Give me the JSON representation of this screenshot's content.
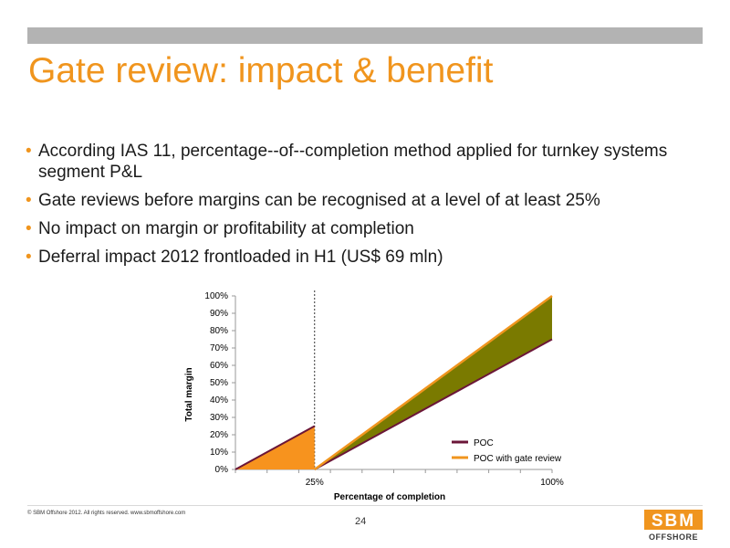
{
  "slide": {
    "title": "Gate review: impact & benefit",
    "bullets": [
      "According IAS 11, percentage--of--completion method applied for turnkey systems segment P&L",
      "Gate reviews before margins can be recognised at a level of at least 25%",
      "No impact on margin or profitability at completion",
      "Deferral impact 2012 frontloaded in H1 (US$ 69 mln)"
    ],
    "footer": "© SBM Offshore 2012. All rights reserved. www.sbmoffshore.com",
    "page_number": "24",
    "logo_text": "SBM",
    "logo_subtext": "OFFSHORE"
  },
  "colors": {
    "accent": "#f0951e",
    "poc": "#6b1638",
    "gate_fill_before": "#f7931e",
    "gap_fill": "#7a7a00"
  },
  "chart_data": {
    "type": "line",
    "xlabel": "Percentage of completion",
    "ylabel": "Total margin",
    "x_tick_labels": [
      "25%",
      "100%"
    ],
    "y_tick_labels": [
      "0%",
      "10%",
      "20%",
      "30%",
      "40%",
      "50%",
      "60%",
      "70%",
      "80%",
      "90%",
      "100%"
    ],
    "ylim": [
      0,
      100
    ],
    "xlim": [
      0,
      100
    ],
    "legend_position": "bottom-right",
    "series": [
      {
        "name": "POC",
        "x": [
          0,
          25
        ],
        "y": [
          0,
          25
        ],
        "segment2_x": [
          25,
          100
        ],
        "segment2_y": [
          0,
          75
        ]
      },
      {
        "name": "POC with gate review",
        "x": [
          0,
          25
        ],
        "y": [
          0,
          25
        ],
        "segment2_x": [
          25,
          100
        ],
        "segment2_y": [
          0,
          100
        ]
      }
    ],
    "vertical_marker_x": 25
  }
}
